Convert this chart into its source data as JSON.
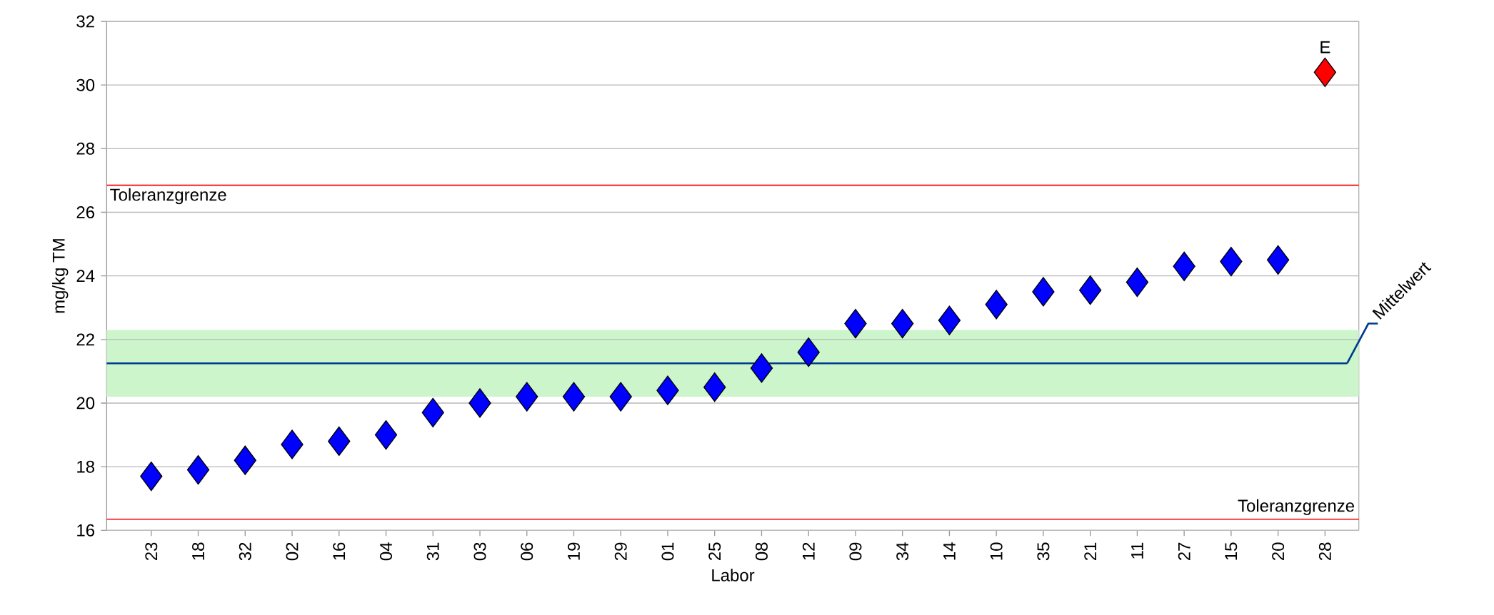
{
  "chart_data": {
    "type": "scatter",
    "xlabel": "Labor",
    "ylabel": "mg/kg TM",
    "categories": [
      "23",
      "18",
      "32",
      "02",
      "16",
      "04",
      "31",
      "03",
      "06",
      "19",
      "29",
      "01",
      "25",
      "08",
      "12",
      "09",
      "34",
      "14",
      "10",
      "35",
      "21",
      "11",
      "27",
      "15",
      "20",
      "28"
    ],
    "series": [
      {
        "color": "#0000ff",
        "values": [
          17.7,
          17.9,
          18.2,
          18.7,
          18.8,
          19.0,
          19.7,
          20.0,
          20.2,
          20.2,
          20.2,
          20.4,
          20.5,
          21.1,
          21.6,
          22.5,
          22.5,
          22.6,
          23.1,
          23.5,
          23.55,
          23.8,
          24.3,
          24.45,
          24.5,
          null
        ]
      },
      {
        "color": "#ff0000",
        "values": [
          null,
          null,
          null,
          null,
          null,
          null,
          null,
          null,
          null,
          null,
          null,
          null,
          null,
          null,
          null,
          null,
          null,
          null,
          null,
          null,
          null,
          null,
          null,
          null,
          null,
          30.4
        ]
      }
    ],
    "ylim": [
      16,
      32
    ],
    "yticks": [
      16,
      18,
      20,
      22,
      24,
      26,
      28,
      30,
      32
    ],
    "grid": "y",
    "marker": "diamond",
    "ref_lines": [
      {
        "axis": "y",
        "value": 26.85,
        "label": "Toleranzgrenze",
        "color": "#ff0000"
      },
      {
        "axis": "y",
        "value": 16.35,
        "label": "Toleranzgrenze",
        "color": "#ff0000"
      },
      {
        "axis": "y",
        "value": 21.25,
        "label": "Mittelwert",
        "color": "#003c8c"
      }
    ],
    "bands": [
      {
        "axis": "y",
        "from": 20.2,
        "to": 22.3,
        "color": "#ccf5cc"
      }
    ],
    "annotations": [
      {
        "text": "E",
        "x": "28",
        "y": 30.4
      }
    ]
  }
}
